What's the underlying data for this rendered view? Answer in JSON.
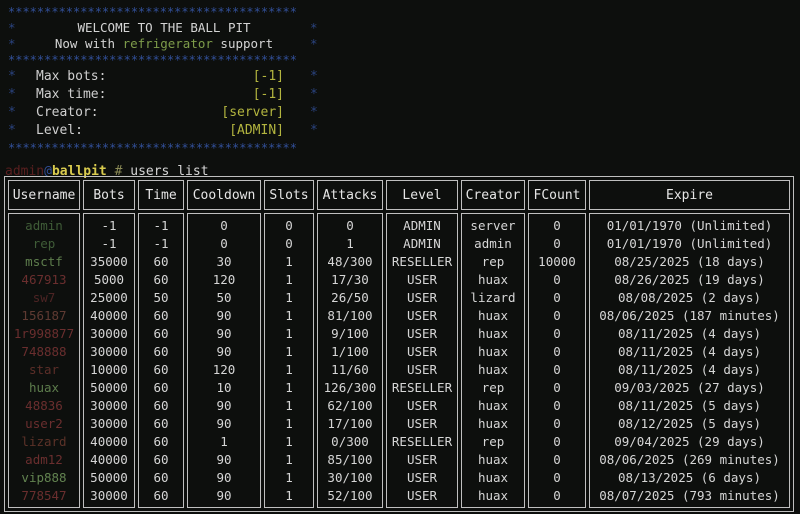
{
  "banner": {
    "border_row": "****************************************",
    "side_char": "*",
    "border_color": "#32509a",
    "title": "WELCOME TO THE BALL PIT",
    "subtitle_prefix": "Now with ",
    "subtitle_highlight": "refrigerator",
    "subtitle_suffix": " support",
    "highlight_color": "#7e9c4a",
    "value_color": "#b3b53f",
    "fields": [
      {
        "label": "Max bots:",
        "value": "[-1]"
      },
      {
        "label": "Max time:",
        "value": "[-1]"
      },
      {
        "label": "Creator:",
        "value": "[server]"
      },
      {
        "label": "Level:",
        "value": "[ADMIN]"
      }
    ]
  },
  "prompt": {
    "user": "admin",
    "at": "@",
    "host": "ballpit",
    "separator": " # ",
    "command": "users list",
    "user_color": "#5a1f1f",
    "host_color": "#d9cb4e"
  },
  "table": {
    "columns": [
      "Username",
      "Bots",
      "Time",
      "Cooldown",
      "Slots",
      "Attacks",
      "Level",
      "Creator",
      "FCount",
      "Expire"
    ],
    "column_keys": [
      "username",
      "bots",
      "time",
      "cooldown",
      "slots",
      "attacks",
      "level",
      "creator",
      "fcount",
      "expire"
    ],
    "border_color": "#bfbfbf",
    "rows": [
      {
        "username": "admin",
        "username_color": "#3f5c37",
        "bots": "-1",
        "time": "-1",
        "cooldown": "0",
        "slots": "0",
        "attacks": "0",
        "level": "ADMIN",
        "creator": "server",
        "fcount": "0",
        "expire": "01/01/1970 (Unlimited)"
      },
      {
        "username": "rep",
        "username_color": "#3f5c37",
        "bots": "-1",
        "time": "-1",
        "cooldown": "0",
        "slots": "0",
        "attacks": "1",
        "level": "ADMIN",
        "creator": "admin",
        "fcount": "0",
        "expire": "01/01/1970 (Unlimited)"
      },
      {
        "username": "msctf",
        "username_color": "#5d7c4c",
        "bots": "35000",
        "time": "60",
        "cooldown": "30",
        "slots": "1",
        "attacks": "48/300",
        "level": "RESELLER",
        "creator": "rep",
        "fcount": "10000",
        "expire": "08/25/2025 (18 days)"
      },
      {
        "username": "467913",
        "username_color": "#6a2e2e",
        "bots": "5000",
        "time": "60",
        "cooldown": "120",
        "slots": "1",
        "attacks": "17/30",
        "level": "USER",
        "creator": "huax",
        "fcount": "0",
        "expire": "08/26/2025 (19 days)"
      },
      {
        "username": "sw7",
        "username_color": "#4d2424",
        "bots": "25000",
        "time": "50",
        "cooldown": "50",
        "slots": "1",
        "attacks": "26/50",
        "level": "USER",
        "creator": "lizard",
        "fcount": "0",
        "expire": "08/08/2025 (2 days)"
      },
      {
        "username": "156187",
        "username_color": "#5f3a32",
        "bots": "40000",
        "time": "60",
        "cooldown": "90",
        "slots": "1",
        "attacks": "81/100",
        "level": "USER",
        "creator": "huax",
        "fcount": "0",
        "expire": "08/06/2025 (187 minutes)"
      },
      {
        "username": "1r998877",
        "username_color": "#6a2e2e",
        "bots": "30000",
        "time": "60",
        "cooldown": "90",
        "slots": "1",
        "attacks": "9/100",
        "level": "USER",
        "creator": "huax",
        "fcount": "0",
        "expire": "08/11/2025 (4 days)"
      },
      {
        "username": "748888",
        "username_color": "#6a2e2e",
        "bots": "30000",
        "time": "60",
        "cooldown": "90",
        "slots": "1",
        "attacks": "1/100",
        "level": "USER",
        "creator": "huax",
        "fcount": "0",
        "expire": "08/11/2025 (4 days)"
      },
      {
        "username": "star",
        "username_color": "#5c2e28",
        "bots": "10000",
        "time": "60",
        "cooldown": "120",
        "slots": "1",
        "attacks": "11/60",
        "level": "USER",
        "creator": "huax",
        "fcount": "0",
        "expire": "08/11/2025 (4 days)"
      },
      {
        "username": "huax",
        "username_color": "#5d7c4c",
        "bots": "50000",
        "time": "60",
        "cooldown": "10",
        "slots": "1",
        "attacks": "126/300",
        "level": "RESELLER",
        "creator": "rep",
        "fcount": "0",
        "expire": "09/03/2025 (27 days)"
      },
      {
        "username": "48836",
        "username_color": "#6a2e2e",
        "bots": "30000",
        "time": "60",
        "cooldown": "90",
        "slots": "1",
        "attacks": "62/100",
        "level": "USER",
        "creator": "huax",
        "fcount": "0",
        "expire": "08/11/2025 (5 days)"
      },
      {
        "username": "user2",
        "username_color": "#6a2e2e",
        "bots": "30000",
        "time": "60",
        "cooldown": "90",
        "slots": "1",
        "attacks": "17/100",
        "level": "USER",
        "creator": "huax",
        "fcount": "0",
        "expire": "08/12/2025 (5 days)"
      },
      {
        "username": "lizard",
        "username_color": "#5c3228",
        "bots": "40000",
        "time": "60",
        "cooldown": "1",
        "slots": "1",
        "attacks": "0/300",
        "level": "RESELLER",
        "creator": "rep",
        "fcount": "0",
        "expire": "09/04/2025 (29 days)"
      },
      {
        "username": "adm12",
        "username_color": "#6a2e2e",
        "bots": "40000",
        "time": "60",
        "cooldown": "90",
        "slots": "1",
        "attacks": "85/100",
        "level": "USER",
        "creator": "huax",
        "fcount": "0",
        "expire": "08/06/2025 (269 minutes)"
      },
      {
        "username": "vip888",
        "username_color": "#628350",
        "bots": "50000",
        "time": "60",
        "cooldown": "90",
        "slots": "1",
        "attacks": "30/100",
        "level": "USER",
        "creator": "huax",
        "fcount": "0",
        "expire": "08/13/2025 (6 days)"
      },
      {
        "username": "778547",
        "username_color": "#6a2e2e",
        "bots": "30000",
        "time": "60",
        "cooldown": "90",
        "slots": "1",
        "attacks": "52/100",
        "level": "USER",
        "creator": "huax",
        "fcount": "0",
        "expire": "08/07/2025 (793 minutes)"
      }
    ]
  }
}
